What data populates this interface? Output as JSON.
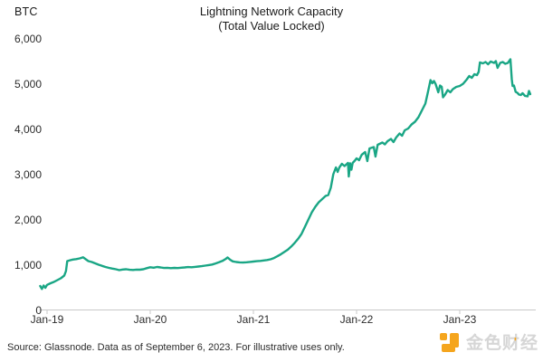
{
  "header": {
    "unit_label": "BTC",
    "title": "Lightning Network Capacity",
    "subtitle": "(Total Value Locked)"
  },
  "footer": {
    "source_note": "Source: Glassnode. Data as of September 6, 2023. For illustrative uses only."
  },
  "watermark": {
    "brand": "金色财经",
    "accent_mark": "'",
    "icon_color": "#f5a51d",
    "text_color": "#d6d6d6"
  },
  "chart_data": {
    "type": "line",
    "title": "Lightning Network Capacity",
    "subtitle": "(Total Value Locked)",
    "ylabel": "BTC",
    "xlabel": "",
    "ylim": [
      0,
      6000
    ],
    "y_ticks": [
      0,
      1000,
      2000,
      3000,
      4000,
      5000,
      6000
    ],
    "y_tick_labels": [
      "0",
      "1,000",
      "2,000",
      "3,000",
      "4,000",
      "5,000",
      "6,000"
    ],
    "x_tick_labels": [
      "Jan-19",
      "Jan-20",
      "Jan-21",
      "Jan-22",
      "Jan-23"
    ],
    "x_tick_months": [
      0,
      12,
      24,
      36,
      48
    ],
    "x_unit": "months since Jan-2019",
    "xlim_months": [
      -0.8,
      56.5
    ],
    "grid": false,
    "legend": "none",
    "line_color": "#1aa685",
    "axis_color": "#c9c9c9",
    "series": [
      {
        "name": "Lightning Network capacity (BTC)",
        "points": [
          [
            -0.8,
            530
          ],
          [
            -0.6,
            465
          ],
          [
            -0.4,
            540
          ],
          [
            -0.2,
            490
          ],
          [
            0,
            555
          ],
          [
            0.4,
            590
          ],
          [
            0.8,
            620
          ],
          [
            1.2,
            660
          ],
          [
            1.6,
            700
          ],
          [
            2,
            760
          ],
          [
            2.2,
            860
          ],
          [
            2.35,
            1080
          ],
          [
            2.7,
            1100
          ],
          [
            3,
            1115
          ],
          [
            3.4,
            1125
          ],
          [
            3.8,
            1140
          ],
          [
            4.2,
            1165
          ],
          [
            4.5,
            1120
          ],
          [
            4.8,
            1080
          ],
          [
            5.2,
            1060
          ],
          [
            5.6,
            1030
          ],
          [
            6,
            1000
          ],
          [
            6.4,
            975
          ],
          [
            6.8,
            950
          ],
          [
            7.2,
            930
          ],
          [
            7.6,
            915
          ],
          [
            8,
            900
          ],
          [
            8.4,
            880
          ],
          [
            8.8,
            895
          ],
          [
            9.2,
            900
          ],
          [
            9.6,
            888
          ],
          [
            10,
            885
          ],
          [
            10.4,
            892
          ],
          [
            10.8,
            890
          ],
          [
            11.2,
            900
          ],
          [
            11.6,
            925
          ],
          [
            12,
            945
          ],
          [
            12.4,
            935
          ],
          [
            12.8,
            950
          ],
          [
            13.2,
            940
          ],
          [
            13.6,
            928
          ],
          [
            14,
            932
          ],
          [
            14.4,
            925
          ],
          [
            14.8,
            930
          ],
          [
            15.2,
            926
          ],
          [
            15.6,
            934
          ],
          [
            16,
            940
          ],
          [
            16.4,
            948
          ],
          [
            16.8,
            944
          ],
          [
            17.2,
            952
          ],
          [
            17.6,
            960
          ],
          [
            18,
            968
          ],
          [
            18.4,
            980
          ],
          [
            18.8,
            992
          ],
          [
            19.2,
            1005
          ],
          [
            19.6,
            1028
          ],
          [
            20,
            1055
          ],
          [
            20.4,
            1085
          ],
          [
            20.8,
            1130
          ],
          [
            21,
            1160
          ],
          [
            21.3,
            1110
          ],
          [
            21.6,
            1075
          ],
          [
            22,
            1060
          ],
          [
            22.4,
            1052
          ],
          [
            22.8,
            1048
          ],
          [
            23.2,
            1055
          ],
          [
            23.6,
            1062
          ],
          [
            24,
            1070
          ],
          [
            24.4,
            1078
          ],
          [
            24.8,
            1085
          ],
          [
            25.2,
            1095
          ],
          [
            25.6,
            1105
          ],
          [
            26,
            1120
          ],
          [
            26.4,
            1148
          ],
          [
            26.8,
            1188
          ],
          [
            27.2,
            1232
          ],
          [
            27.6,
            1282
          ],
          [
            28,
            1332
          ],
          [
            28.4,
            1402
          ],
          [
            28.8,
            1482
          ],
          [
            29.2,
            1572
          ],
          [
            29.6,
            1682
          ],
          [
            30,
            1840
          ],
          [
            30.4,
            2000
          ],
          [
            30.8,
            2160
          ],
          [
            31.2,
            2280
          ],
          [
            31.6,
            2380
          ],
          [
            32,
            2450
          ],
          [
            32.4,
            2520
          ],
          [
            32.7,
            2540
          ],
          [
            33,
            2700
          ],
          [
            33.3,
            3000
          ],
          [
            33.6,
            3150
          ],
          [
            33.8,
            3050
          ],
          [
            34,
            3150
          ],
          [
            34.3,
            3230
          ],
          [
            34.6,
            3180
          ],
          [
            35,
            3250
          ],
          [
            35.1,
            2950
          ],
          [
            35.25,
            3240
          ],
          [
            35.4,
            3100
          ],
          [
            35.55,
            3250
          ],
          [
            35.8,
            3300
          ],
          [
            36,
            3350
          ],
          [
            36.3,
            3310
          ],
          [
            36.6,
            3430
          ],
          [
            37,
            3490
          ],
          [
            37.25,
            3290
          ],
          [
            37.5,
            3570
          ],
          [
            38,
            3600
          ],
          [
            38.2,
            3390
          ],
          [
            38.45,
            3650
          ],
          [
            39,
            3700
          ],
          [
            39.3,
            3660
          ],
          [
            39.6,
            3730
          ],
          [
            40,
            3780
          ],
          [
            40.3,
            3710
          ],
          [
            40.6,
            3810
          ],
          [
            41,
            3900
          ],
          [
            41.3,
            3850
          ],
          [
            41.6,
            3970
          ],
          [
            42,
            4010
          ],
          [
            42.4,
            4100
          ],
          [
            42.8,
            4160
          ],
          [
            43.2,
            4260
          ],
          [
            43.6,
            4410
          ],
          [
            44,
            4560
          ],
          [
            44.3,
            4810
          ],
          [
            44.6,
            5080
          ],
          [
            44.8,
            5010
          ],
          [
            45,
            5060
          ],
          [
            45.2,
            4990
          ],
          [
            45.5,
            4810
          ],
          [
            45.7,
            4960
          ],
          [
            45.9,
            4930
          ],
          [
            46.05,
            4700
          ],
          [
            46.3,
            4760
          ],
          [
            46.6,
            4860
          ],
          [
            46.9,
            4810
          ],
          [
            47.2,
            4880
          ],
          [
            47.6,
            4930
          ],
          [
            48,
            4950
          ],
          [
            48.4,
            5000
          ],
          [
            48.8,
            5090
          ],
          [
            49.1,
            5170
          ],
          [
            49.4,
            5130
          ],
          [
            49.7,
            5210
          ],
          [
            50,
            5190
          ],
          [
            50.2,
            5260
          ],
          [
            50.35,
            5470
          ],
          [
            50.7,
            5450
          ],
          [
            51,
            5480
          ],
          [
            51.3,
            5430
          ],
          [
            51.6,
            5490
          ],
          [
            52,
            5460
          ],
          [
            52.2,
            5500
          ],
          [
            52.4,
            5350
          ],
          [
            52.7,
            5460
          ],
          [
            53,
            5480
          ],
          [
            53.3,
            5440
          ],
          [
            53.6,
            5460
          ],
          [
            53.9,
            5540
          ],
          [
            54.05,
            5100
          ],
          [
            54.15,
            4950
          ],
          [
            54.3,
            4960
          ],
          [
            54.5,
            4820
          ],
          [
            54.7,
            4800
          ],
          [
            54.9,
            4760
          ],
          [
            55.1,
            4750
          ],
          [
            55.3,
            4790
          ],
          [
            55.6,
            4730
          ],
          [
            55.9,
            4720
          ],
          [
            56.05,
            4840
          ],
          [
            56.2,
            4770
          ]
        ]
      }
    ]
  }
}
